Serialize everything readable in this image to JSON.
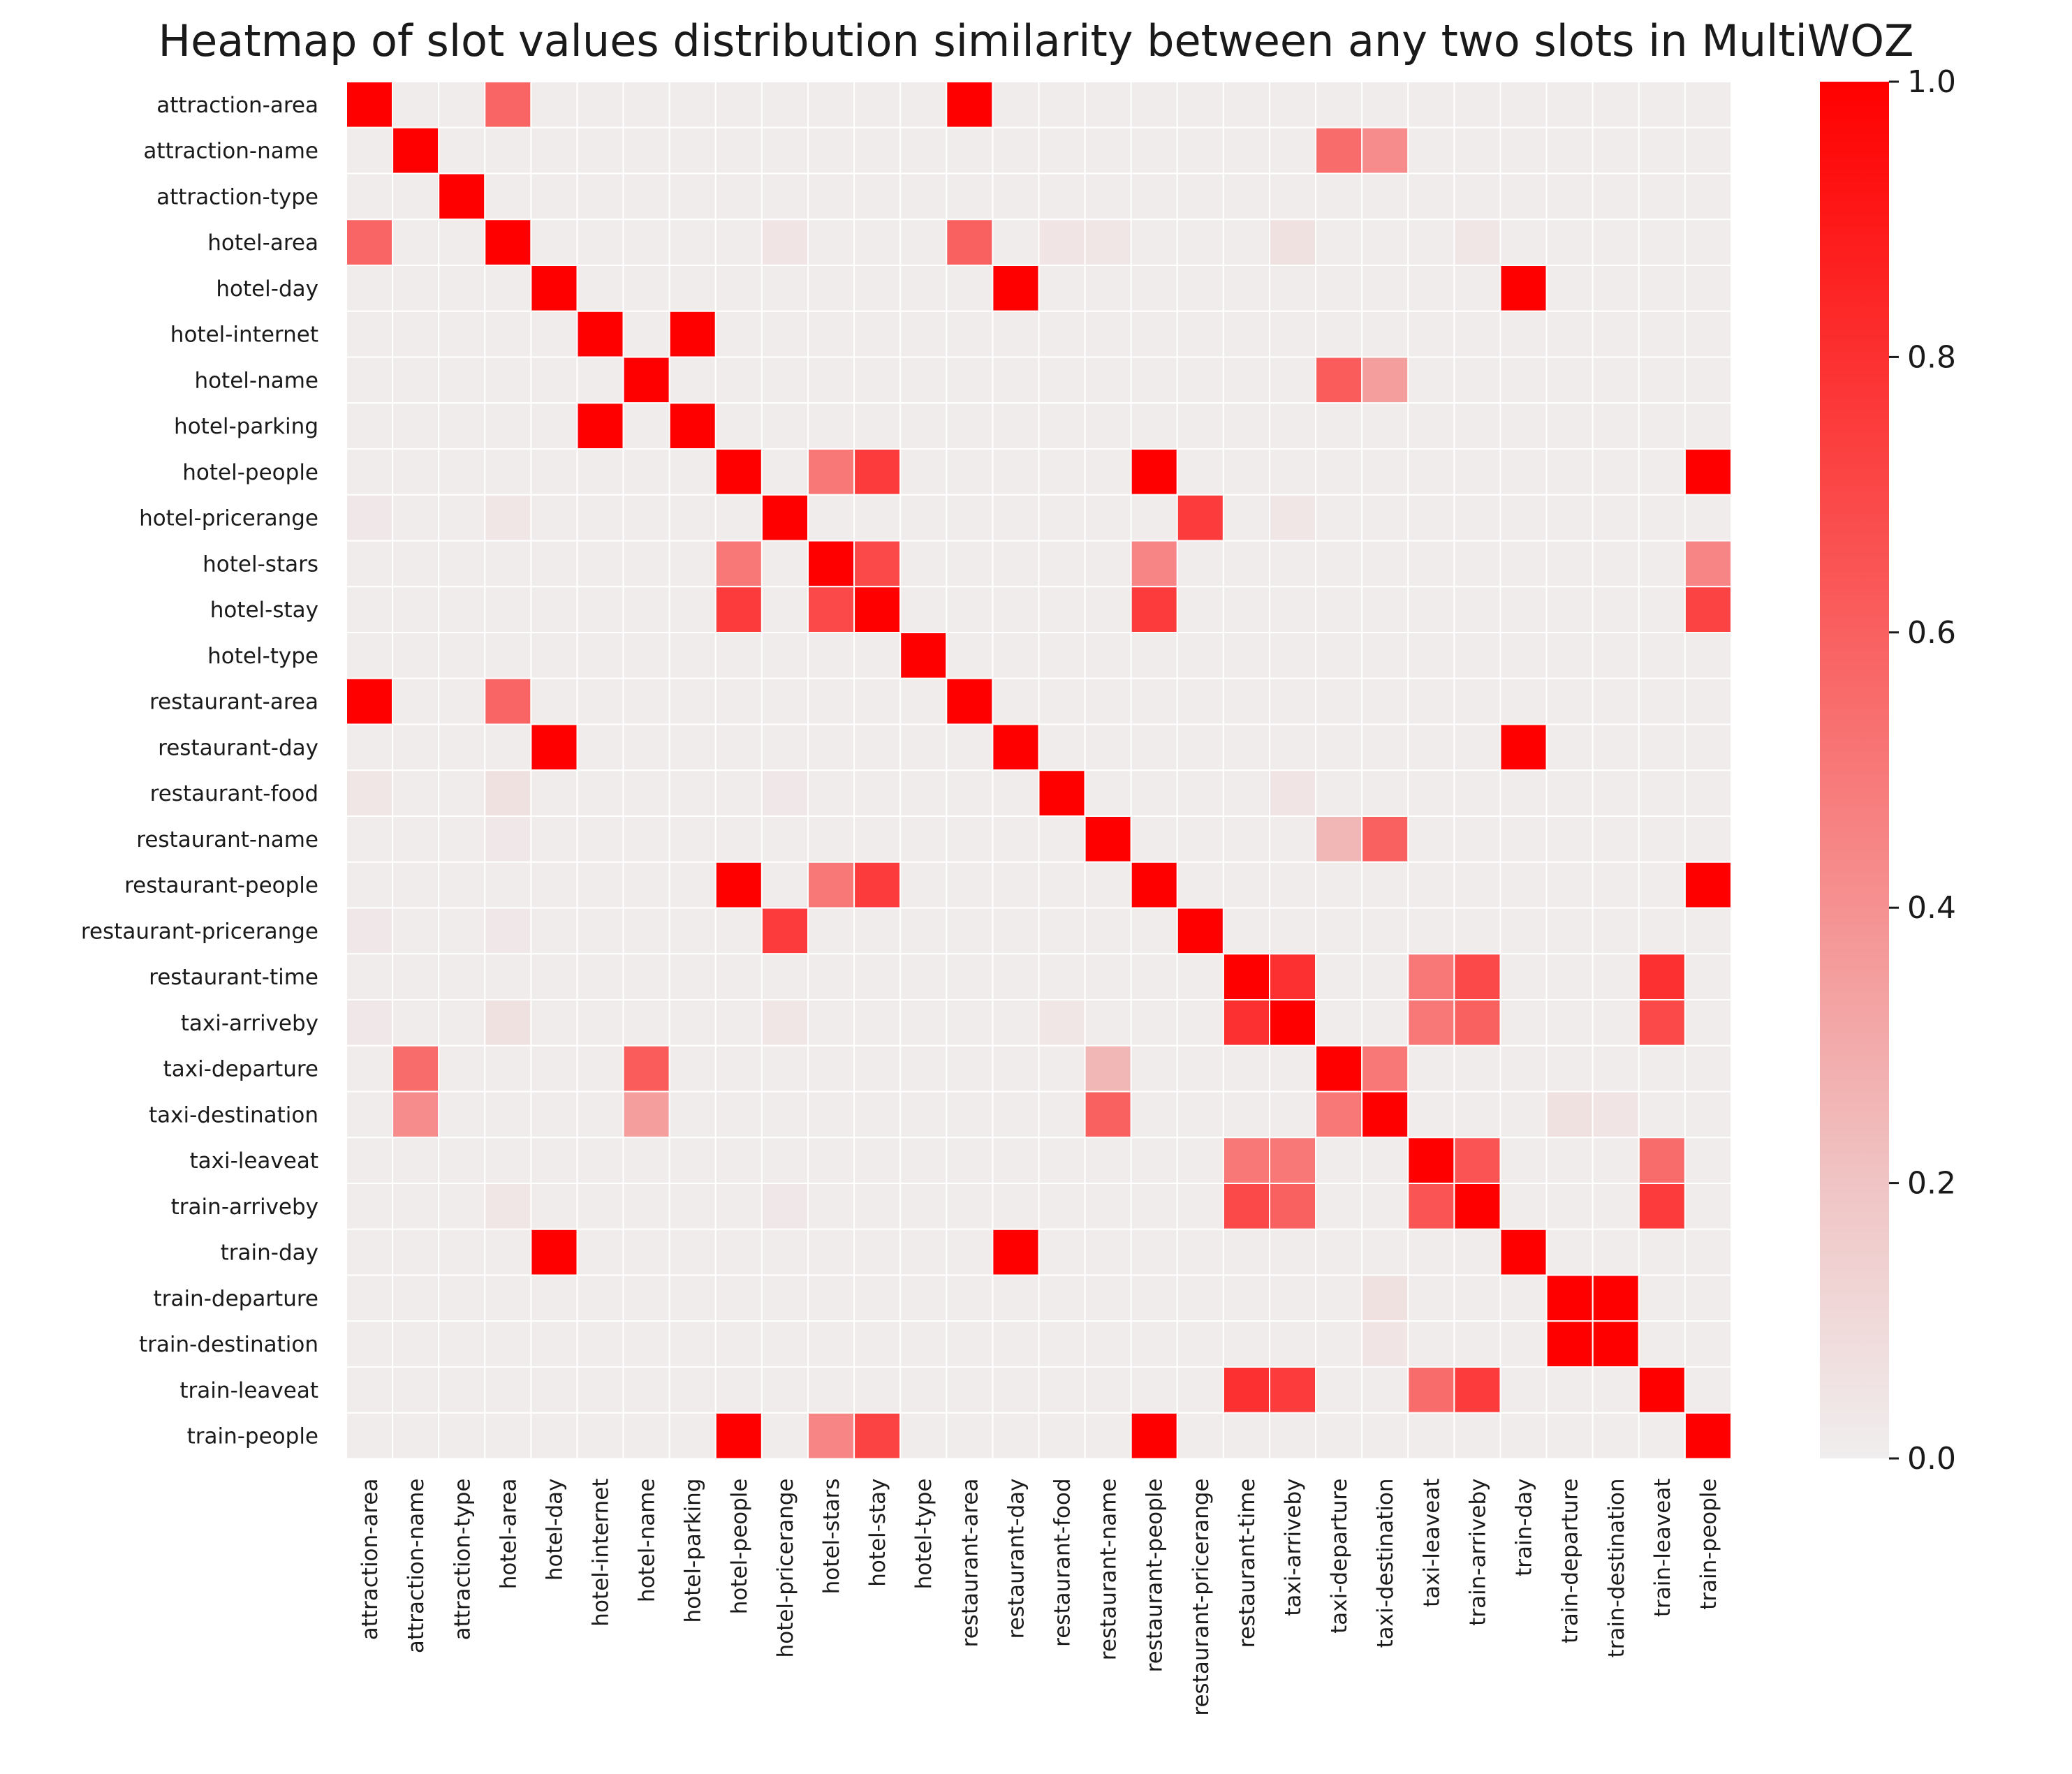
{
  "chart_data": {
    "type": "heatmap",
    "title": "Heatmap of slot values distribution similarity between any two slots in MultiWOZ",
    "labels": [
      "attraction-area",
      "attraction-name",
      "attraction-type",
      "hotel-area",
      "hotel-day",
      "hotel-internet",
      "hotel-name",
      "hotel-parking",
      "hotel-people",
      "hotel-pricerange",
      "hotel-stars",
      "hotel-stay",
      "hotel-type",
      "restaurant-area",
      "restaurant-day",
      "restaurant-food",
      "restaurant-name",
      "restaurant-people",
      "restaurant-pricerange",
      "restaurant-time",
      "taxi-arriveby",
      "taxi-departure",
      "taxi-destination",
      "taxi-leaveat",
      "train-arriveby",
      "train-day",
      "train-departure",
      "train-destination",
      "train-leaveat",
      "train-people"
    ],
    "colormap": {
      "low": "#f0eeee",
      "high": "#ff0000"
    },
    "colorbar": {
      "min": 0.0,
      "max": 1.0,
      "ticks": [
        "0.0",
        "0.2",
        "0.4",
        "0.6",
        "0.8",
        "1.0"
      ],
      "tick_values": [
        0.0,
        0.2,
        0.4,
        0.6,
        0.8,
        1.0
      ]
    },
    "baseline_value": 0.01,
    "cells": [
      [
        0,
        0,
        1
      ],
      [
        0,
        3,
        0.58
      ],
      [
        0,
        13,
        1
      ],
      [
        0,
        5,
        0.01
      ],
      [
        1,
        1,
        1
      ],
      [
        1,
        21,
        0.55
      ],
      [
        1,
        22,
        0.42
      ],
      [
        2,
        2,
        1
      ],
      [
        3,
        0,
        0.58
      ],
      [
        3,
        3,
        1
      ],
      [
        3,
        13,
        0.6
      ],
      [
        3,
        20,
        0.06
      ],
      [
        3,
        9,
        0.05
      ],
      [
        3,
        15,
        0.05
      ],
      [
        3,
        16,
        0.04
      ],
      [
        3,
        24,
        0.04
      ],
      [
        4,
        4,
        1
      ],
      [
        4,
        14,
        1
      ],
      [
        4,
        25,
        1
      ],
      [
        5,
        5,
        1
      ],
      [
        5,
        7,
        1
      ],
      [
        6,
        6,
        1
      ],
      [
        6,
        21,
        0.62
      ],
      [
        6,
        22,
        0.35
      ],
      [
        7,
        5,
        1
      ],
      [
        7,
        7,
        1
      ],
      [
        8,
        8,
        1
      ],
      [
        8,
        10,
        0.5
      ],
      [
        8,
        11,
        0.75
      ],
      [
        8,
        17,
        1
      ],
      [
        8,
        29,
        1
      ],
      [
        9,
        9,
        1
      ],
      [
        9,
        18,
        0.75
      ],
      [
        9,
        3,
        0.04
      ],
      [
        9,
        0,
        0.03
      ],
      [
        9,
        20,
        0.04
      ],
      [
        10,
        8,
        0.5
      ],
      [
        10,
        10,
        1
      ],
      [
        10,
        11,
        0.7
      ],
      [
        10,
        17,
        0.45
      ],
      [
        10,
        29,
        0.45
      ],
      [
        11,
        8,
        0.75
      ],
      [
        11,
        10,
        0.7
      ],
      [
        11,
        11,
        1
      ],
      [
        11,
        17,
        0.75
      ],
      [
        11,
        29,
        0.72
      ],
      [
        12,
        12,
        1
      ],
      [
        13,
        0,
        1
      ],
      [
        13,
        3,
        0.58
      ],
      [
        13,
        13,
        1
      ],
      [
        14,
        4,
        1
      ],
      [
        14,
        14,
        1
      ],
      [
        14,
        25,
        1
      ],
      [
        15,
        15,
        1
      ],
      [
        15,
        0,
        0.04
      ],
      [
        15,
        3,
        0.06
      ],
      [
        15,
        20,
        0.05
      ],
      [
        15,
        9,
        0.03
      ],
      [
        16,
        16,
        1
      ],
      [
        16,
        21,
        0.25
      ],
      [
        16,
        22,
        0.6
      ],
      [
        16,
        3,
        0.03
      ],
      [
        17,
        8,
        1
      ],
      [
        17,
        10,
        0.5
      ],
      [
        17,
        11,
        0.75
      ],
      [
        17,
        17,
        1
      ],
      [
        17,
        29,
        1
      ],
      [
        18,
        9,
        0.75
      ],
      [
        18,
        18,
        1
      ],
      [
        18,
        0,
        0.03
      ],
      [
        18,
        3,
        0.03
      ],
      [
        19,
        19,
        1
      ],
      [
        19,
        20,
        0.8
      ],
      [
        19,
        23,
        0.5
      ],
      [
        19,
        24,
        0.7
      ],
      [
        19,
        28,
        0.8
      ],
      [
        20,
        19,
        0.8
      ],
      [
        20,
        20,
        1
      ],
      [
        20,
        23,
        0.5
      ],
      [
        20,
        24,
        0.6
      ],
      [
        20,
        28,
        0.7
      ],
      [
        20,
        3,
        0.06
      ],
      [
        20,
        0,
        0.03
      ],
      [
        20,
        9,
        0.04
      ],
      [
        20,
        15,
        0.04
      ],
      [
        21,
        1,
        0.55
      ],
      [
        21,
        6,
        0.62
      ],
      [
        21,
        16,
        0.25
      ],
      [
        21,
        21,
        1
      ],
      [
        21,
        22,
        0.5
      ],
      [
        22,
        1,
        0.42
      ],
      [
        22,
        6,
        0.35
      ],
      [
        22,
        16,
        0.6
      ],
      [
        22,
        21,
        0.5
      ],
      [
        22,
        22,
        1
      ],
      [
        22,
        26,
        0.06
      ],
      [
        22,
        27,
        0.05
      ],
      [
        23,
        19,
        0.5
      ],
      [
        23,
        20,
        0.5
      ],
      [
        23,
        23,
        1
      ],
      [
        23,
        24,
        0.65
      ],
      [
        23,
        28,
        0.55
      ],
      [
        24,
        19,
        0.7
      ],
      [
        24,
        20,
        0.6
      ],
      [
        24,
        23,
        0.65
      ],
      [
        24,
        24,
        1
      ],
      [
        24,
        28,
        0.75
      ],
      [
        24,
        3,
        0.04
      ],
      [
        24,
        9,
        0.03
      ],
      [
        25,
        4,
        1
      ],
      [
        25,
        14,
        1
      ],
      [
        25,
        25,
        1
      ],
      [
        26,
        22,
        0.06
      ],
      [
        26,
        26,
        1
      ],
      [
        26,
        27,
        1
      ],
      [
        27,
        22,
        0.05
      ],
      [
        27,
        26,
        1
      ],
      [
        27,
        27,
        1
      ],
      [
        28,
        19,
        0.8
      ],
      [
        28,
        20,
        0.75
      ],
      [
        28,
        23,
        0.55
      ],
      [
        28,
        24,
        0.75
      ],
      [
        28,
        28,
        1
      ],
      [
        29,
        8,
        1
      ],
      [
        29,
        10,
        0.45
      ],
      [
        29,
        11,
        0.72
      ],
      [
        29,
        17,
        1
      ],
      [
        29,
        29,
        1
      ]
    ]
  }
}
